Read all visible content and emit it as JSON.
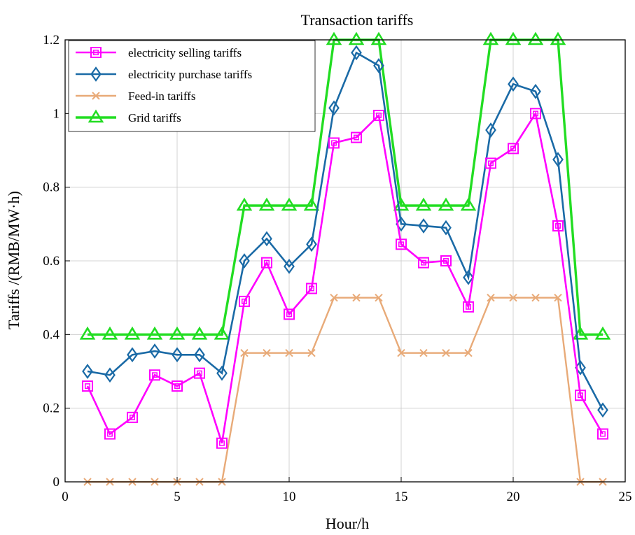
{
  "chart_data": {
    "type": "line",
    "title": "Transaction tariffs",
    "xlabel": "Hour/h",
    "ylabel": "Tariffs /(RMB/MW·h)",
    "xlim": [
      0,
      25
    ],
    "ylim": [
      0,
      1.2
    ],
    "x_ticks": [
      "0",
      "5",
      "10",
      "15",
      "20",
      "25"
    ],
    "y_ticks": [
      "0",
      "0.2",
      "0.4",
      "0.6",
      "0.8",
      "1",
      "1.2"
    ],
    "grid": true,
    "legend_position": "top-left",
    "x": [
      1,
      2,
      3,
      4,
      5,
      6,
      7,
      8,
      9,
      10,
      11,
      12,
      13,
      14,
      15,
      16,
      17,
      18,
      19,
      20,
      21,
      22,
      23,
      24
    ],
    "series": [
      {
        "name": "electricity selling tariffs",
        "color": "#ff00ff",
        "marker": "square",
        "values": [
          0.26,
          0.13,
          0.175,
          0.29,
          0.26,
          0.295,
          0.105,
          0.49,
          0.595,
          0.455,
          0.525,
          0.92,
          0.935,
          0.995,
          0.645,
          0.595,
          0.6,
          0.475,
          0.865,
          0.905,
          1.0,
          0.695,
          0.235,
          0.13
        ]
      },
      {
        "name": "electricity purchase tariffs",
        "color": "#1a6aa6",
        "marker": "diamond",
        "values": [
          0.3,
          0.29,
          0.345,
          0.355,
          0.345,
          0.345,
          0.295,
          0.6,
          0.66,
          0.585,
          0.645,
          1.015,
          1.165,
          1.13,
          0.7,
          0.695,
          0.69,
          0.555,
          0.955,
          1.08,
          1.06,
          0.875,
          0.31,
          0.195
        ]
      },
      {
        "name": "Feed-in tariffs",
        "color": "#e8aa78",
        "marker": "x",
        "values": [
          0,
          0,
          0,
          0,
          0,
          0,
          0,
          0.35,
          0.35,
          0.35,
          0.35,
          0.5,
          0.5,
          0.5,
          0.35,
          0.35,
          0.35,
          0.35,
          0.5,
          0.5,
          0.5,
          0.5,
          0,
          0
        ]
      },
      {
        "name": "Grid tariffs",
        "color": "#22dd22",
        "marker": "triangle",
        "values": [
          0.4,
          0.4,
          0.4,
          0.4,
          0.4,
          0.4,
          0.4,
          0.75,
          0.75,
          0.75,
          0.75,
          1.2,
          1.2,
          1.2,
          0.75,
          0.75,
          0.75,
          0.75,
          1.2,
          1.2,
          1.2,
          1.2,
          0.4,
          0.4
        ]
      }
    ]
  }
}
